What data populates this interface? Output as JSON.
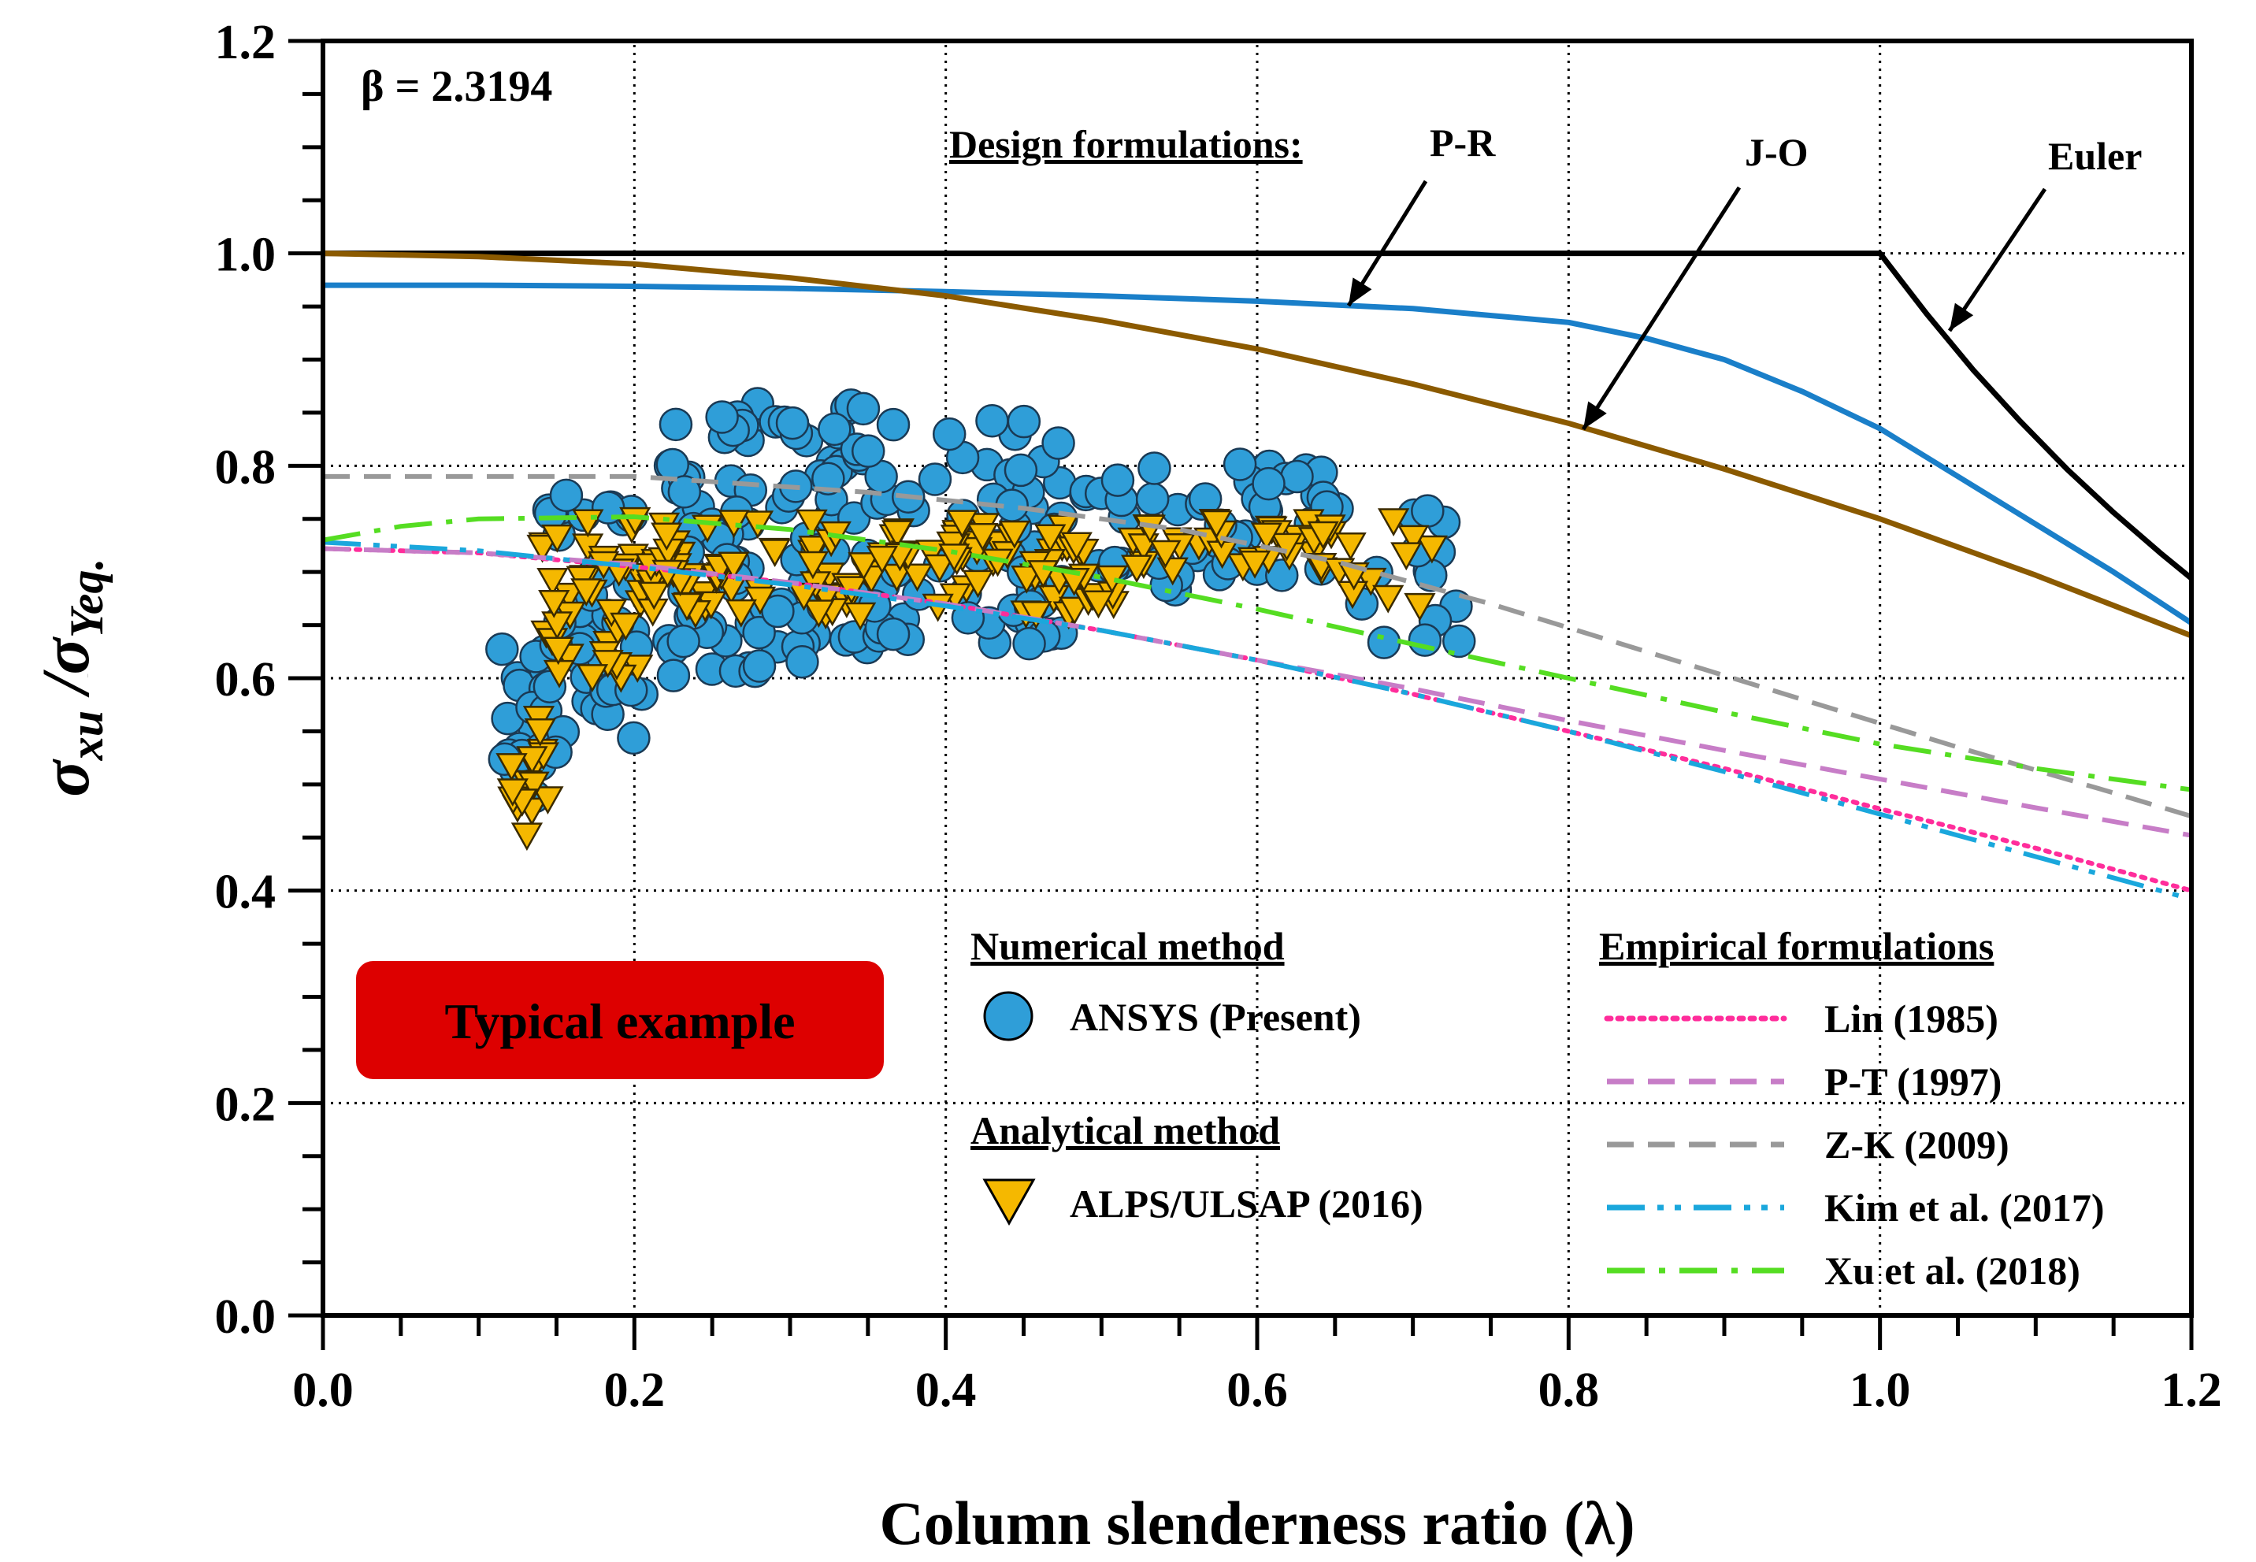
{
  "chart_data": {
    "type": "line",
    "title": "",
    "annotation": "β = 2.3194",
    "xlabel": "Column slenderness ratio (λ)",
    "ylabel": "σxu /σYeq.",
    "xlim": [
      0,
      1.2
    ],
    "ylim": [
      0,
      1.2
    ],
    "xticks": [
      "0.0",
      "0.2",
      "0.4",
      "0.6",
      "0.8",
      "1.0",
      "1.2"
    ],
    "yticks": [
      "0.0",
      "0.2",
      "0.4",
      "0.6",
      "0.8",
      "1.0",
      "1.2"
    ],
    "grid": "dotted",
    "design_heading": "Design formulations:",
    "design_labels": [
      {
        "name": "P-R",
        "text": "P-R"
      },
      {
        "name": "J-O",
        "text": "J-O"
      },
      {
        "name": "Euler",
        "text": "Euler"
      }
    ],
    "badge_text": "Typical example",
    "legend": {
      "numerical_heading": "Numerical method",
      "numerical_item": "ANSYS (Present)",
      "analytical_heading": "Analytical method",
      "analytical_item": "ALPS/ULSAP (2016)",
      "empirical_heading": "Empirical formulations",
      "empirical_items": [
        "Lin (1985)",
        "P-T (1997)",
        "Z-K (2009)",
        "Kim et al. (2017)",
        "Xu et al. (2018)"
      ]
    },
    "colors": {
      "euler": "#000000",
      "pr": "#1a7fc9",
      "jo": "#8b5a00",
      "lin": "#ff2d9b",
      "pt": "#c77dc7",
      "zk": "#999999",
      "kim": "#1aa7dc",
      "xu": "#55dd22",
      "ansys_fill": "#2f9ed8",
      "alps_fill": "#f5b800",
      "badge": "#dd0000",
      "badge_text": "#ffff00"
    },
    "series": [
      {
        "name": "Euler",
        "key": "euler",
        "style": "solid",
        "x": [
          0,
          1.0,
          1.03,
          1.06,
          1.09,
          1.12,
          1.15,
          1.18,
          1.2
        ],
        "y": [
          1.0,
          1.0,
          0.943,
          0.89,
          0.842,
          0.797,
          0.756,
          0.718,
          0.694
        ]
      },
      {
        "name": "P-R",
        "key": "pr",
        "style": "solid",
        "x": [
          0,
          0.1,
          0.2,
          0.3,
          0.4,
          0.5,
          0.6,
          0.7,
          0.8,
          0.85,
          0.9,
          0.95,
          1.0,
          1.05,
          1.1,
          1.15,
          1.2
        ],
        "y": [
          0.97,
          0.97,
          0.969,
          0.967,
          0.964,
          0.96,
          0.955,
          0.948,
          0.935,
          0.92,
          0.9,
          0.87,
          0.835,
          0.79,
          0.745,
          0.7,
          0.652
        ]
      },
      {
        "name": "J-O",
        "key": "jo",
        "style": "solid",
        "x": [
          0,
          0.1,
          0.2,
          0.3,
          0.4,
          0.5,
          0.6,
          0.7,
          0.8,
          0.9,
          1.0,
          1.1,
          1.2
        ],
        "y": [
          1.0,
          0.997,
          0.99,
          0.977,
          0.96,
          0.937,
          0.91,
          0.877,
          0.84,
          0.797,
          0.75,
          0.697,
          0.64
        ]
      },
      {
        "name": "Lin (1985)",
        "key": "lin",
        "style": "dotted",
        "x": [
          0,
          0.1,
          0.2,
          0.3,
          0.4,
          0.5,
          0.6,
          0.7,
          0.8,
          0.9,
          1.0,
          1.1,
          1.2
        ],
        "y": [
          0.722,
          0.718,
          0.705,
          0.69,
          0.67,
          0.645,
          0.617,
          0.585,
          0.55,
          0.515,
          0.477,
          0.44,
          0.4
        ]
      },
      {
        "name": "P-T (1997)",
        "key": "pt",
        "style": "dashed",
        "x": [
          0,
          0.1,
          0.2,
          0.3,
          0.4,
          0.5,
          0.6,
          0.7,
          0.8,
          0.9,
          1.0,
          1.1,
          1.2
        ],
        "y": [
          0.722,
          0.718,
          0.707,
          0.69,
          0.67,
          0.645,
          0.617,
          0.59,
          0.56,
          0.532,
          0.505,
          0.478,
          0.452
        ]
      },
      {
        "name": "Z-K (2009)",
        "key": "zk",
        "style": "dashed",
        "x": [
          0,
          0.1,
          0.2,
          0.25,
          0.35,
          0.45,
          0.55,
          0.65,
          0.75,
          0.85,
          0.95,
          1.05,
          1.15,
          1.2
        ],
        "y": [
          0.79,
          0.79,
          0.79,
          0.785,
          0.775,
          0.76,
          0.74,
          0.71,
          0.67,
          0.625,
          0.58,
          0.535,
          0.492,
          0.47
        ]
      },
      {
        "name": "Kim et al. (2017)",
        "key": "kim",
        "style": "dashdotdot",
        "x": [
          0,
          0.1,
          0.2,
          0.3,
          0.4,
          0.5,
          0.6,
          0.7,
          0.8,
          0.9,
          1.0,
          1.1,
          1.2
        ],
        "y": [
          0.728,
          0.72,
          0.705,
          0.688,
          0.668,
          0.645,
          0.617,
          0.585,
          0.55,
          0.512,
          0.472,
          0.432,
          0.392
        ]
      },
      {
        "name": "Xu et al. (2018)",
        "key": "xu",
        "style": "dashdot",
        "x": [
          0,
          0.05,
          0.1,
          0.2,
          0.3,
          0.4,
          0.5,
          0.6,
          0.7,
          0.8,
          0.9,
          1.0,
          1.1,
          1.2
        ],
        "y": [
          0.73,
          0.743,
          0.75,
          0.752,
          0.74,
          0.72,
          0.695,
          0.665,
          0.632,
          0.6,
          0.568,
          0.538,
          0.515,
          0.495
        ]
      }
    ],
    "ansys_clusters": [
      {
        "x": [
          0.115,
          0.145
        ],
        "y": [
          0.48,
          0.64
        ],
        "n": 22
      },
      {
        "x": [
          0.145,
          0.205
        ],
        "y": [
          0.53,
          0.78
        ],
        "n": 42
      },
      {
        "x": [
          0.22,
          0.28
        ],
        "y": [
          0.6,
          0.86
        ],
        "n": 48
      },
      {
        "x": [
          0.28,
          0.35
        ],
        "y": [
          0.61,
          0.86
        ],
        "n": 50
      },
      {
        "x": [
          0.35,
          0.48
        ],
        "y": [
          0.63,
          0.85
        ],
        "n": 60
      },
      {
        "x": [
          0.48,
          0.52
        ],
        "y": [
          0.67,
          0.79
        ],
        "n": 10
      },
      {
        "x": [
          0.52,
          0.66
        ],
        "y": [
          0.68,
          0.82
        ],
        "n": 40
      },
      {
        "x": [
          0.66,
          0.73
        ],
        "y": [
          0.63,
          0.76
        ],
        "n": 14
      }
    ],
    "alps_clusters": [
      {
        "x": [
          0.12,
          0.145
        ],
        "y": [
          0.45,
          0.57
        ],
        "n": 16
      },
      {
        "x": [
          0.14,
          0.205
        ],
        "y": [
          0.6,
          0.75
        ],
        "n": 40
      },
      {
        "x": [
          0.21,
          0.5
        ],
        "y": [
          0.66,
          0.75
        ],
        "n": 120
      },
      {
        "x": [
          0.48,
          0.51
        ],
        "y": [
          0.67,
          0.71
        ],
        "n": 6
      },
      {
        "x": [
          0.51,
          0.66
        ],
        "y": [
          0.7,
          0.75
        ],
        "n": 36
      },
      {
        "x": [
          0.66,
          0.72
        ],
        "y": [
          0.66,
          0.75
        ],
        "n": 10
      }
    ]
  }
}
